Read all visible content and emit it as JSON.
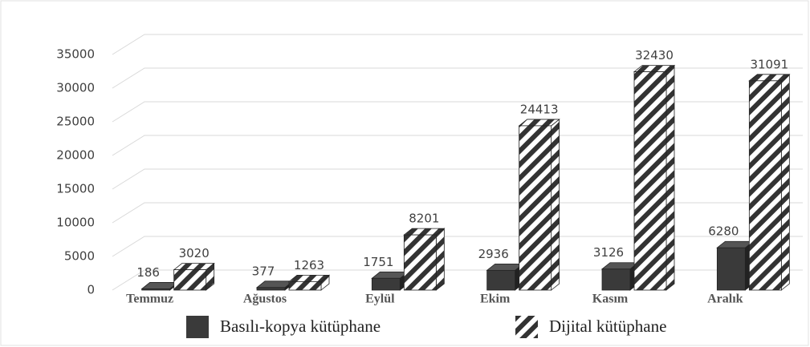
{
  "chart_data": {
    "type": "bar3d",
    "categories": [
      "Temmuz",
      "Ağustos",
      "Eylül",
      "Ekim",
      "Kasım",
      "Aralık"
    ],
    "series": [
      {
        "name": "Basılı-kopya kütüphane",
        "color": "#3a3a3a",
        "values": [
          186,
          377,
          1751,
          2936,
          3126,
          6280
        ]
      },
      {
        "name": "Dijital kütüphane",
        "color": "#333333",
        "pattern": "diagonal-stripes",
        "values": [
          3020,
          1263,
          8201,
          24413,
          32430,
          31091
        ]
      }
    ],
    "ylim": [
      0,
      35000
    ],
    "yticks": [
      0,
      5000,
      10000,
      15000,
      20000,
      25000,
      30000,
      35000
    ],
    "grid": true,
    "legend": "bottom"
  }
}
